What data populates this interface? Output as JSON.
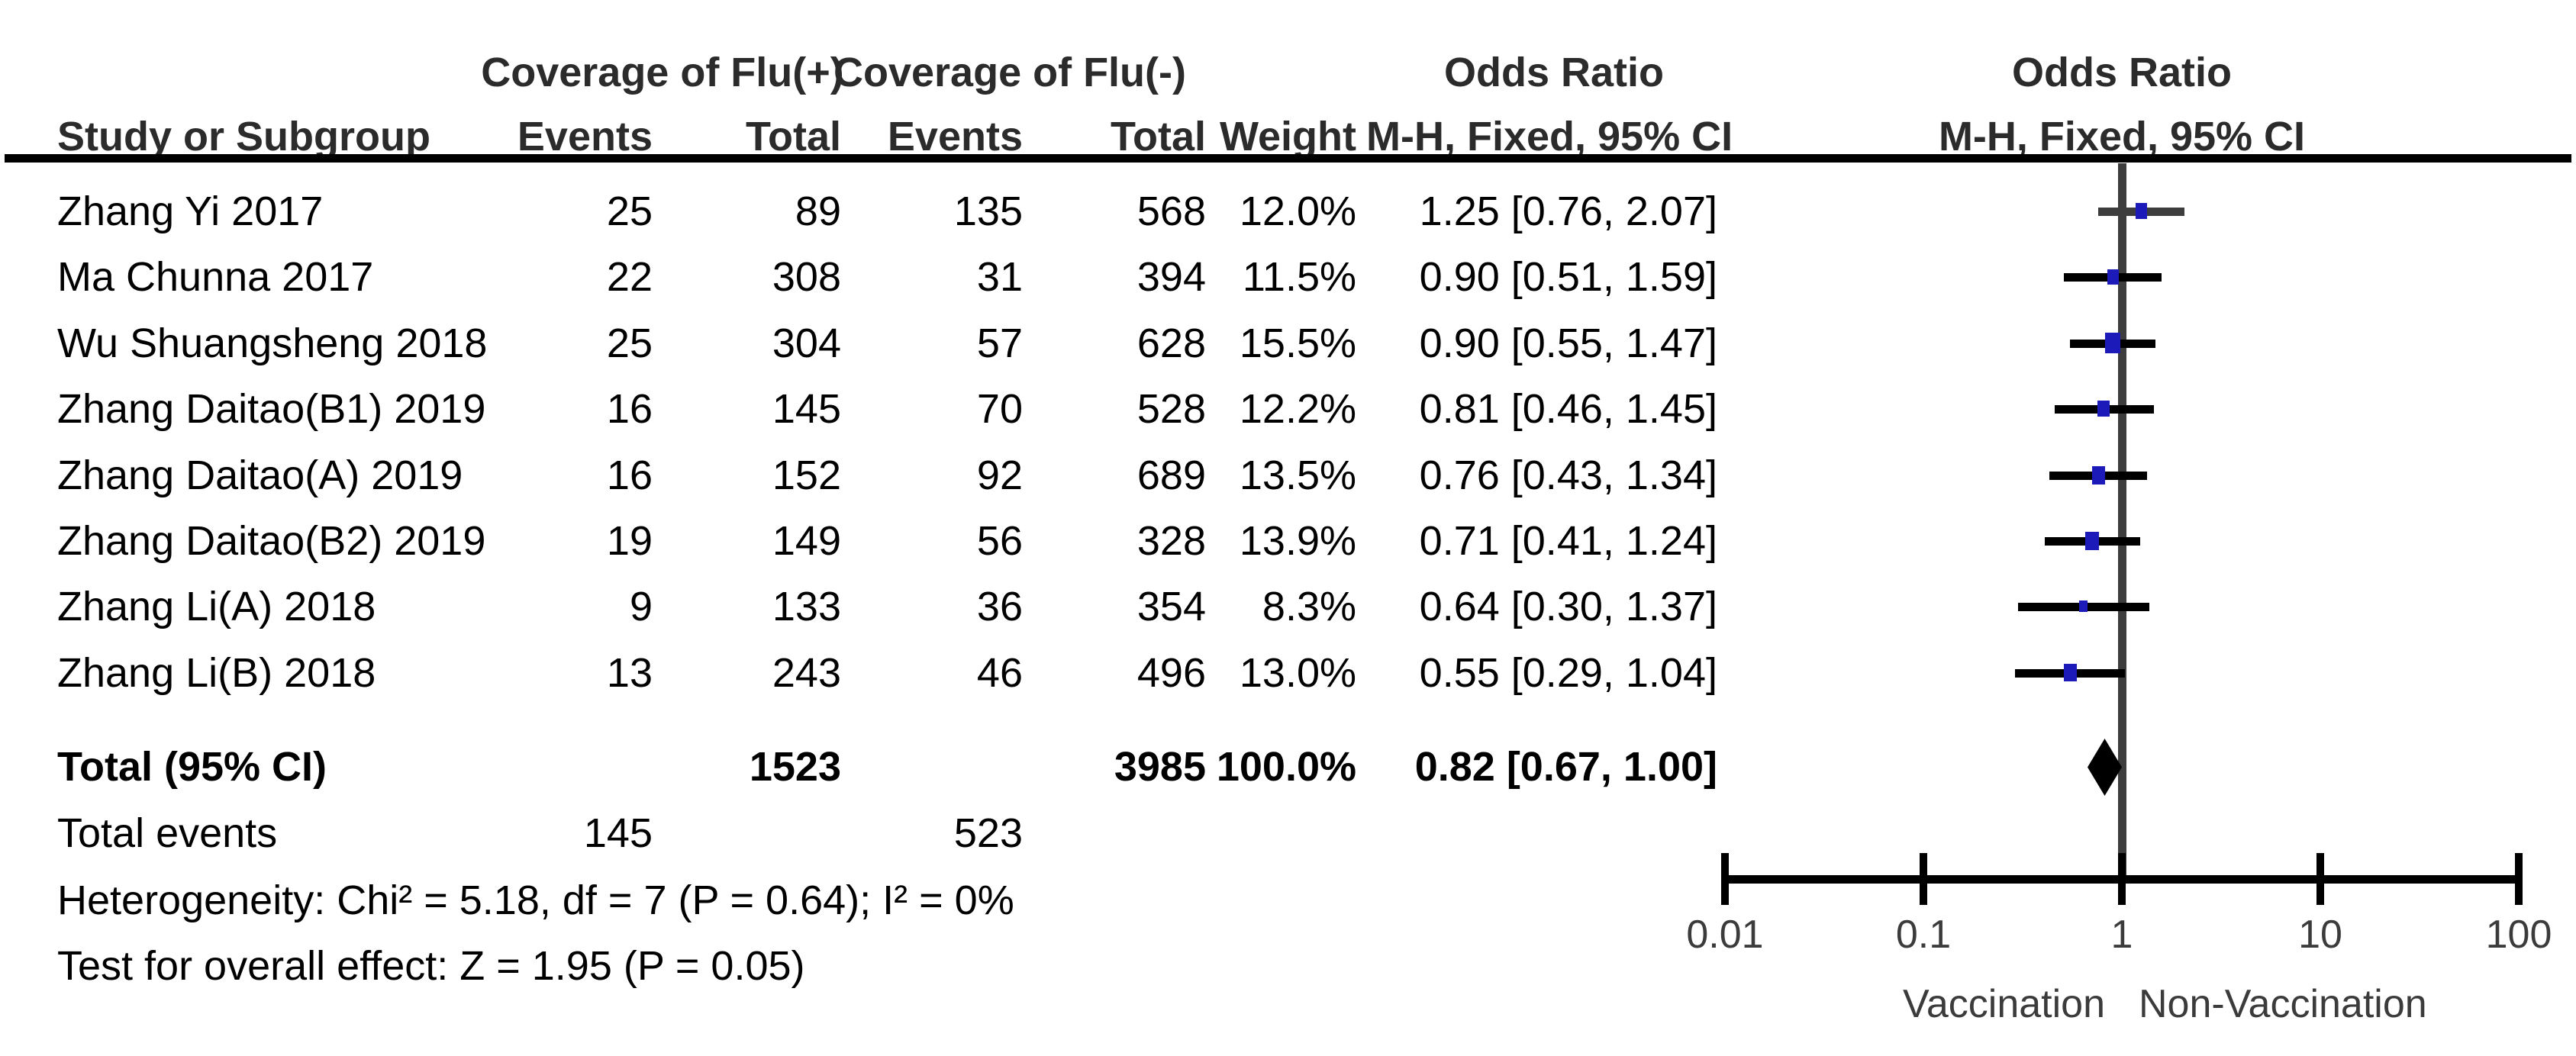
{
  "header": {
    "study_col": "Study or Subgroup",
    "flu_pos_group": "Coverage of Flu(+)",
    "flu_neg_group": "Coverage of Flu(-)",
    "or_text_title": "Odds Ratio",
    "or_plot_title": "Odds Ratio",
    "events1": "Events",
    "total1": "Total",
    "events2": "Events",
    "total2": "Total",
    "weight": "Weight",
    "method_text": "M-H, Fixed, 95% CI",
    "method_plot": "M-H, Fixed, 95% CI"
  },
  "colors": {
    "background": "#ffffff",
    "text": "#000000",
    "header_text": "#2b2b2b",
    "marker_blue": "#1c1ab8",
    "ci_black": "#000000",
    "ci_gray": "#3d3d3d",
    "null_line_gray": "#3d3d3d",
    "axis_black": "#000000",
    "axis_label_gray": "#3b3b3b",
    "diamond_black": "#000000"
  },
  "chart_data": {
    "type": "forest",
    "effect_measure": "Odds Ratio",
    "method": "M-H, Fixed, 95% CI",
    "x_scale": "log10",
    "x_ticks": [
      0.01,
      0.1,
      1,
      10,
      100
    ],
    "x_tick_labels": [
      "0.01",
      "0.1",
      "1",
      "10",
      "100"
    ],
    "null_line": 1,
    "axis_label_left": "Vaccination",
    "axis_label_right": "Non-Vaccination",
    "studies": [
      {
        "name": "Zhang Yi 2017",
        "events_flu_pos": "25",
        "total_flu_pos": "89",
        "events_flu_neg": "135",
        "total_flu_neg": "568",
        "weight": "12.0%",
        "weight_pct": 12.0,
        "or": 1.25,
        "ci_low": 0.76,
        "ci_high": 2.07,
        "or_ci_label": "1.25 [0.76, 2.07]",
        "ci_shade": "gray"
      },
      {
        "name": "Ma Chunna 2017",
        "events_flu_pos": "22",
        "total_flu_pos": "308",
        "events_flu_neg": "31",
        "total_flu_neg": "394",
        "weight": "11.5%",
        "weight_pct": 11.5,
        "or": 0.9,
        "ci_low": 0.51,
        "ci_high": 1.59,
        "or_ci_label": "0.90 [0.51, 1.59]"
      },
      {
        "name": "Wu Shuangsheng 2018",
        "events_flu_pos": "25",
        "total_flu_pos": "304",
        "events_flu_neg": "57",
        "total_flu_neg": "628",
        "weight": "15.5%",
        "weight_pct": 15.5,
        "or": 0.9,
        "ci_low": 0.55,
        "ci_high": 1.47,
        "or_ci_label": "0.90 [0.55, 1.47]"
      },
      {
        "name": "Zhang Daitao(B1) 2019",
        "events_flu_pos": "16",
        "total_flu_pos": "145",
        "events_flu_neg": "70",
        "total_flu_neg": "528",
        "weight": "12.2%",
        "weight_pct": 12.2,
        "or": 0.81,
        "ci_low": 0.46,
        "ci_high": 1.45,
        "or_ci_label": "0.81 [0.46, 1.45]"
      },
      {
        "name": "Zhang Daitao(A) 2019",
        "events_flu_pos": "16",
        "total_flu_pos": "152",
        "events_flu_neg": "92",
        "total_flu_neg": "689",
        "weight": "13.5%",
        "weight_pct": 13.5,
        "or": 0.76,
        "ci_low": 0.43,
        "ci_high": 1.34,
        "or_ci_label": "0.76 [0.43, 1.34]"
      },
      {
        "name": "Zhang Daitao(B2) 2019",
        "events_flu_pos": "19",
        "total_flu_pos": "149",
        "events_flu_neg": "56",
        "total_flu_neg": "328",
        "weight": "13.9%",
        "weight_pct": 13.9,
        "or": 0.71,
        "ci_low": 0.41,
        "ci_high": 1.24,
        "or_ci_label": "0.71 [0.41, 1.24]"
      },
      {
        "name": "Zhang Li(A) 2018",
        "events_flu_pos": "9",
        "total_flu_pos": "133",
        "events_flu_neg": "36",
        "total_flu_neg": "354",
        "weight": "8.3%",
        "weight_pct": 8.3,
        "or": 0.64,
        "ci_low": 0.3,
        "ci_high": 1.37,
        "or_ci_label": "0.64 [0.30, 1.37]"
      },
      {
        "name": "Zhang Li(B) 2018",
        "events_flu_pos": "13",
        "total_flu_pos": "243",
        "events_flu_neg": "46",
        "total_flu_neg": "496",
        "weight": "13.0%",
        "weight_pct": 13.0,
        "or": 0.55,
        "ci_low": 0.29,
        "ci_high": 1.04,
        "or_ci_label": "0.55 [0.29, 1.04]"
      }
    ],
    "total": {
      "label": "Total (95% CI)",
      "total_flu_pos": "1523",
      "total_flu_neg": "3985",
      "weight": "100.0%",
      "or": 0.82,
      "ci_low": 0.67,
      "ci_high": 1.0,
      "or_ci_label": "0.82 [0.67, 1.00]"
    },
    "total_events": {
      "label": "Total events",
      "flu_pos": "145",
      "flu_neg": "523"
    },
    "heterogeneity": "Heterogeneity: Chi² = 5.18, df = 7 (P = 0.64); I² = 0%",
    "overall_effect": "Test for overall effect: Z = 1.95 (P = 0.05)"
  }
}
